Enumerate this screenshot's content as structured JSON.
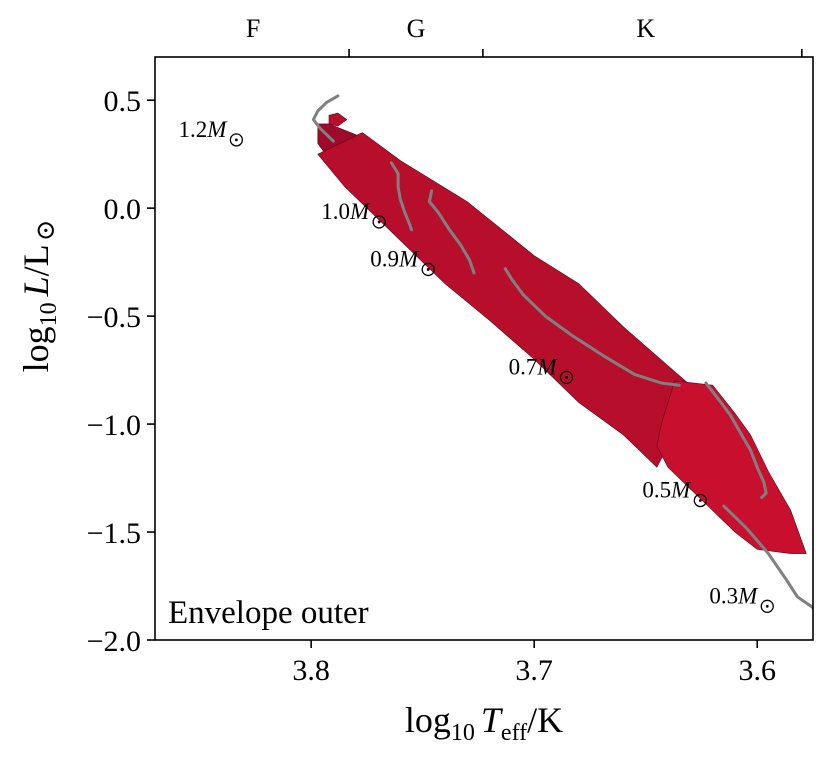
{
  "chart_data": {
    "type": "scatter",
    "title": "",
    "panel_label": "Envelope outer",
    "xlabel": {
      "prefix": "log",
      "sub": "10",
      "var": "T",
      "var_sub": "eff",
      "suffix": "/K"
    },
    "ylabel": {
      "prefix": "log",
      "sub": "10",
      "var": "L",
      "suffix": "/L",
      "sun": "⊙"
    },
    "xlim": [
      3.87,
      3.575
    ],
    "ylim": [
      -2.0,
      0.7
    ],
    "x_ticks": [
      3.8,
      3.7,
      3.6
    ],
    "x_tick_labels": [
      "3.8",
      "3.7",
      "3.6"
    ],
    "y_ticks": [
      0.5,
      0.0,
      -0.5,
      -1.0,
      -1.5,
      -2.0
    ],
    "y_tick_labels": [
      "0.5",
      "0.0",
      "−0.5",
      "−1.0",
      "−1.5",
      "−2.0"
    ],
    "spectral_class_boundaries": [
      3.783,
      3.723,
      3.58
    ],
    "spectral_classes": [
      {
        "label": "F",
        "x": 3.826
      },
      {
        "label": "G",
        "x": 3.753
      },
      {
        "label": "K",
        "x": 3.65
      }
    ],
    "colors": {
      "region_a": "#9d0a2a",
      "region_b": "#b70e2c",
      "region_c": "#c8102e",
      "track": "#808080"
    },
    "regions": [
      {
        "name": "upper",
        "color_key": "region_a",
        "points": [
          [
            3.797,
            0.39
          ],
          [
            3.792,
            0.39
          ],
          [
            3.78,
            0.34
          ],
          [
            3.76,
            0.2
          ],
          [
            3.74,
            0.0
          ],
          [
            3.72,
            -0.2
          ],
          [
            3.714,
            -0.26
          ],
          [
            3.705,
            -0.29
          ],
          [
            3.69,
            -0.38
          ],
          [
            3.7,
            -0.44
          ],
          [
            3.73,
            -0.28
          ],
          [
            3.77,
            0.0
          ],
          [
            3.79,
            0.2
          ],
          [
            3.797,
            0.3
          ]
        ]
      },
      {
        "name": "lower",
        "color_key": "region_b",
        "points": [
          [
            3.777,
            0.35
          ],
          [
            3.76,
            0.22
          ],
          [
            3.73,
            0.03
          ],
          [
            3.7,
            -0.22
          ],
          [
            3.68,
            -0.35
          ],
          [
            3.66,
            -0.55
          ],
          [
            3.64,
            -0.73
          ],
          [
            3.63,
            -0.82
          ],
          [
            3.625,
            -0.85
          ],
          [
            3.64,
            -1.02
          ],
          [
            3.64,
            -1.1
          ],
          [
            3.645,
            -1.2
          ],
          [
            3.66,
            -1.05
          ],
          [
            3.68,
            -0.9
          ],
          [
            3.7,
            -0.7
          ],
          [
            3.72,
            -0.52
          ],
          [
            3.74,
            -0.35
          ],
          [
            3.76,
            -0.15
          ],
          [
            3.785,
            0.1
          ],
          [
            3.797,
            0.25
          ]
        ]
      },
      {
        "name": "lowest",
        "color_key": "region_c",
        "points": [
          [
            3.637,
            -0.8
          ],
          [
            3.62,
            -0.82
          ],
          [
            3.61,
            -0.95
          ],
          [
            3.603,
            -1.05
          ],
          [
            3.595,
            -1.22
          ],
          [
            3.585,
            -1.4
          ],
          [
            3.578,
            -1.6
          ],
          [
            3.585,
            -1.6
          ],
          [
            3.6,
            -1.58
          ],
          [
            3.61,
            -1.5
          ],
          [
            3.62,
            -1.4
          ],
          [
            3.63,
            -1.3
          ],
          [
            3.64,
            -1.2
          ],
          [
            3.645,
            -1.1
          ],
          [
            3.643,
            -1.0
          ]
        ]
      },
      {
        "name": "top-patch",
        "color_key": "region_b",
        "points": [
          [
            3.792,
            0.43
          ],
          [
            3.788,
            0.44
          ],
          [
            3.784,
            0.41
          ],
          [
            3.788,
            0.38
          ],
          [
            3.792,
            0.39
          ]
        ]
      }
    ],
    "series": [
      {
        "name": "1.2M",
        "label": "1.2",
        "label_pos": [
          3.838,
          0.33
        ],
        "points": [
          [
            3.788,
            0.52
          ],
          [
            3.793,
            0.49
          ],
          [
            3.797,
            0.45
          ],
          [
            3.799,
            0.41
          ],
          [
            3.796,
            0.37
          ],
          [
            3.79,
            0.31
          ]
        ]
      },
      {
        "name": "1.0M",
        "label": "1.0",
        "label_pos": [
          3.774,
          -0.05
        ],
        "points": [
          [
            3.764,
            0.21
          ],
          [
            3.761,
            0.16
          ],
          [
            3.761,
            0.1
          ],
          [
            3.76,
            0.04
          ],
          [
            3.758,
            -0.02
          ],
          [
            3.756,
            -0.07
          ],
          [
            3.755,
            -0.1
          ]
        ]
      },
      {
        "name": "0.9M",
        "label": "0.9",
        "label_pos": [
          3.752,
          -0.27
        ],
        "points": [
          [
            3.746,
            0.08
          ],
          [
            3.747,
            0.03
          ],
          [
            3.743,
            -0.02
          ],
          [
            3.738,
            -0.1
          ],
          [
            3.733,
            -0.17
          ],
          [
            3.729,
            -0.24
          ],
          [
            3.727,
            -0.3
          ]
        ]
      },
      {
        "name": "0.7M",
        "label": "0.7",
        "label_pos": [
          3.69,
          -0.77
        ],
        "points": [
          [
            3.713,
            -0.28
          ],
          [
            3.71,
            -0.33
          ],
          [
            3.705,
            -0.4
          ],
          [
            3.695,
            -0.5
          ],
          [
            3.683,
            -0.59
          ],
          [
            3.668,
            -0.69
          ],
          [
            3.655,
            -0.77
          ],
          [
            3.643,
            -0.81
          ],
          [
            3.635,
            -0.82
          ]
        ]
      },
      {
        "name": "0.5M",
        "label": "0.5",
        "label_pos": [
          3.63,
          -1.34
        ],
        "points": [
          [
            3.623,
            -0.81
          ],
          [
            3.617,
            -0.89
          ],
          [
            3.612,
            -0.96
          ],
          [
            3.607,
            -1.05
          ],
          [
            3.603,
            -1.12
          ],
          [
            3.6,
            -1.2
          ],
          [
            3.597,
            -1.27
          ],
          [
            3.596,
            -1.32
          ],
          [
            3.598,
            -1.34
          ]
        ]
      },
      {
        "name": "0.3M",
        "label": "0.3",
        "label_pos": [
          3.6,
          -1.83
        ],
        "points": [
          [
            3.615,
            -1.38
          ],
          [
            3.605,
            -1.48
          ],
          [
            3.595,
            -1.6
          ],
          [
            3.587,
            -1.72
          ],
          [
            3.582,
            -1.8
          ],
          [
            3.575,
            -1.85
          ],
          [
            3.573,
            -1.9
          ]
        ]
      }
    ]
  }
}
